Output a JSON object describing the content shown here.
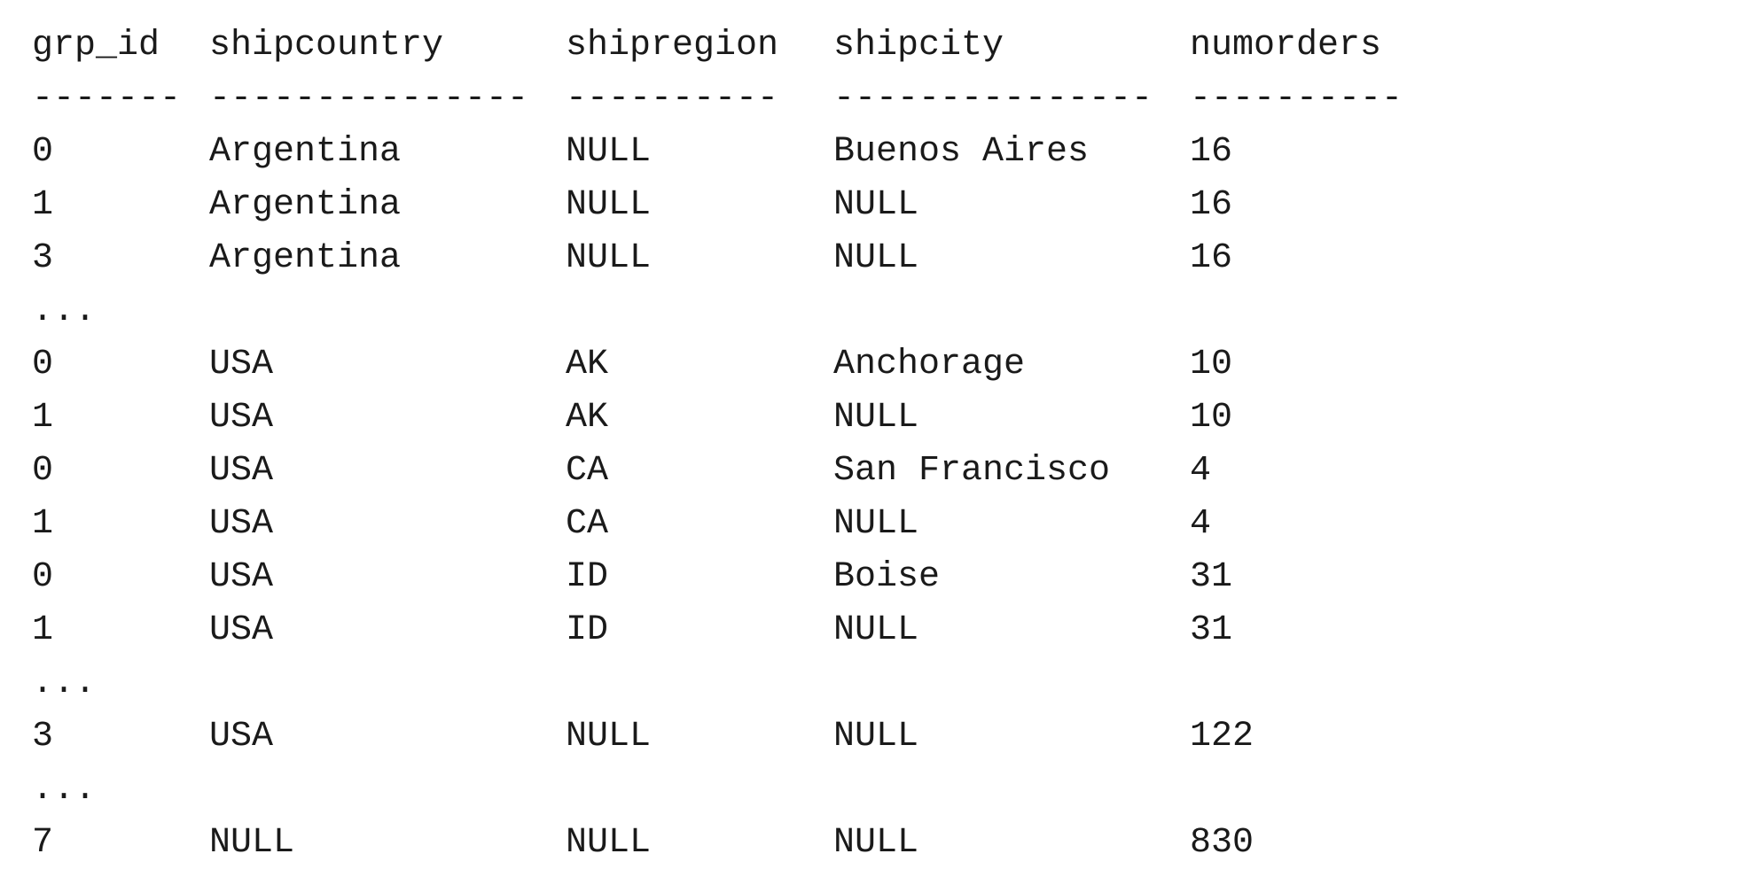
{
  "columns": [
    "grp_id",
    "shipcountry",
    "shipregion",
    "shipcity",
    "numorders"
  ],
  "separators": [
    "-------",
    "---------------",
    "----------",
    "---------------",
    "----------"
  ],
  "rows": [
    [
      "0",
      "Argentina",
      "NULL",
      "Buenos Aires",
      "16"
    ],
    [
      "1",
      "Argentina",
      "NULL",
      "NULL",
      "16"
    ],
    [
      "3",
      "Argentina",
      "NULL",
      "NULL",
      "16"
    ],
    [
      "..."
    ],
    [
      "0",
      "USA",
      "AK",
      "Anchorage",
      "10"
    ],
    [
      "1",
      "USA",
      "AK",
      "NULL",
      "10"
    ],
    [
      "0",
      "USA",
      "CA",
      "San Francisco",
      "4"
    ],
    [
      "1",
      "USA",
      "CA",
      "NULL",
      "4"
    ],
    [
      "0",
      "USA",
      "ID",
      "Boise",
      "31"
    ],
    [
      "1",
      "USA",
      "ID",
      "NULL",
      "31"
    ],
    [
      "..."
    ],
    [
      "3",
      "USA",
      "NULL",
      "NULL",
      "122"
    ],
    [
      "..."
    ],
    [
      "7",
      "NULL",
      "NULL",
      "NULL",
      "830"
    ]
  ]
}
